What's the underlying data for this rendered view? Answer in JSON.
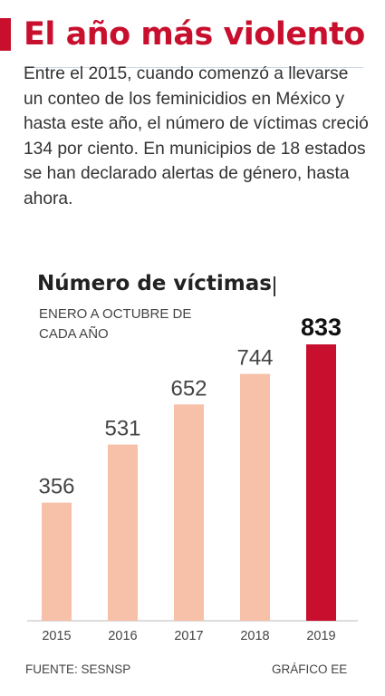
{
  "header": {
    "title": "El año más violento",
    "intro": "Entre el 2015, cuando comenzó a llevarse un conteo de los feminicidios en México y hasta este año, el número de víctimas creció 134 por ciento. En municipios de 18 estados se han declarado alertas de género, hasta ahora."
  },
  "chart_data": {
    "type": "bar",
    "title": "Número de víctimas",
    "subtitle": "ENERO A OCTUBRE DE CADA AÑO",
    "categories": [
      "2015",
      "2016",
      "2017",
      "2018",
      "2019"
    ],
    "values": [
      356,
      531,
      652,
      744,
      833
    ],
    "value_labels": [
      "356",
      "531",
      "652",
      "744",
      "833"
    ],
    "ylim": [
      0,
      833
    ],
    "grid": false,
    "legend": "none",
    "colors": {
      "bar": "#f7c0a8",
      "highlight_bar": "#c8102e",
      "accent": "#c8102e",
      "axis": "#bbbbbb"
    }
  },
  "footer": {
    "source": "FUENTE: SESNSP",
    "credit": "GRÁFICO EE"
  }
}
